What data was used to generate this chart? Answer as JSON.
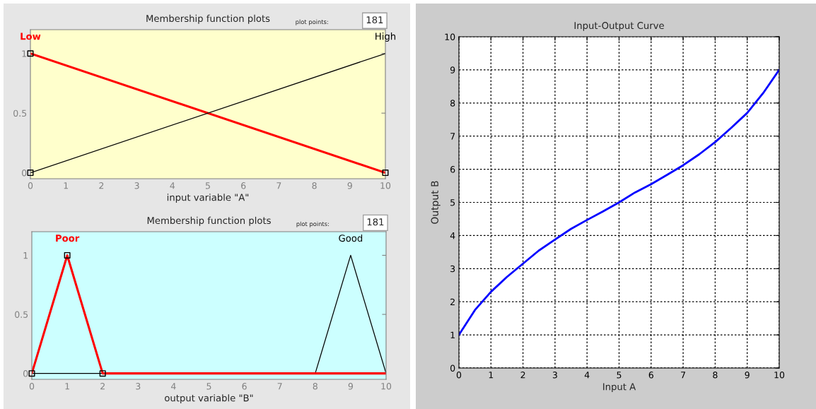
{
  "chart_data": [
    {
      "type": "line",
      "title": "Membership function plots",
      "xlabel": "input variable \"A\"",
      "xlim": [
        0,
        10
      ],
      "xticks": [
        0,
        1,
        2,
        3,
        4,
        5,
        6,
        7,
        8,
        9,
        10
      ],
      "ylim": [
        -0.05,
        1.2
      ],
      "yticks": [
        0,
        0.5,
        1
      ],
      "grid": false,
      "annotations": [
        "plot points:",
        "181"
      ],
      "series": [
        {
          "name": "Low",
          "color": "#ff0000",
          "x": [
            0,
            10
          ],
          "values": [
            1,
            0
          ]
        },
        {
          "name": "High",
          "color": "#000000",
          "x": [
            0,
            10
          ],
          "values": [
            0,
            1
          ]
        },
        {
          "type": "scatter",
          "marker": "square",
          "color": "#000000",
          "x": [
            0,
            0,
            10
          ],
          "values": [
            1,
            0,
            0
          ]
        }
      ]
    },
    {
      "type": "line",
      "title": "Membership function plots",
      "xlabel": "output variable \"B\"",
      "xlim": [
        0,
        10
      ],
      "xticks": [
        0,
        1,
        2,
        3,
        4,
        5,
        6,
        7,
        8,
        9,
        10
      ],
      "ylim": [
        -0.05,
        1.2
      ],
      "yticks": [
        0,
        0.5,
        1
      ],
      "grid": false,
      "annotations": [
        "plot points:",
        "181"
      ],
      "series": [
        {
          "name": "Good",
          "color": "#000000",
          "x": [
            0,
            8,
            9,
            10
          ],
          "values": [
            0,
            0,
            1,
            0
          ]
        },
        {
          "name": "Poor",
          "color": "#ff0000",
          "x": [
            0,
            1,
            2,
            10
          ],
          "values": [
            0,
            1,
            0,
            0
          ]
        },
        {
          "type": "scatter",
          "marker": "square",
          "color": "#000000",
          "x": [
            0,
            1,
            2
          ],
          "values": [
            0,
            1,
            0
          ]
        }
      ]
    },
    {
      "type": "line",
      "title": "Input-Output Curve",
      "xlabel": "Input A",
      "ylabel": "Output B",
      "xlim": [
        0,
        10
      ],
      "xticks": [
        0,
        1,
        2,
        3,
        4,
        5,
        6,
        7,
        8,
        9,
        10
      ],
      "ylim": [
        0,
        10
      ],
      "yticks": [
        0,
        1,
        2,
        3,
        4,
        5,
        6,
        7,
        8,
        9,
        10
      ],
      "grid": true,
      "series": [
        {
          "color": "#0000ff",
          "x": [
            0,
            0.5,
            1,
            1.5,
            2,
            2.5,
            3,
            3.5,
            4,
            4.5,
            5,
            5.5,
            6,
            6.5,
            7,
            7.5,
            8,
            8.5,
            9,
            9.5,
            10
          ],
          "values": [
            1,
            1.75,
            2.3,
            2.75,
            3.15,
            3.55,
            3.88,
            4.2,
            4.47,
            4.73,
            5.0,
            5.3,
            5.55,
            5.83,
            6.12,
            6.45,
            6.82,
            7.25,
            7.7,
            8.3,
            9.0
          ]
        }
      ]
    }
  ]
}
